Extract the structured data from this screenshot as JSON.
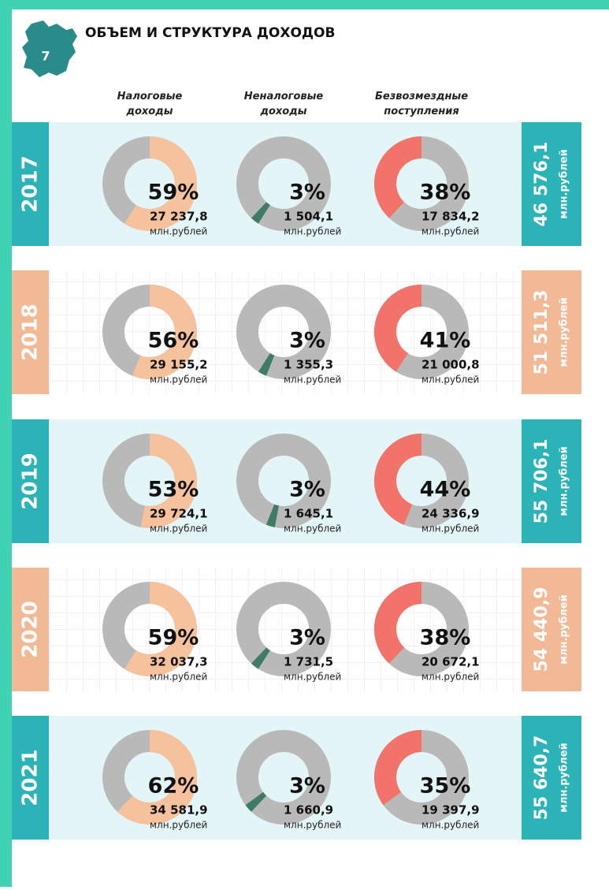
{
  "title": "ОБЪЕМ И СТРУКТУРА ДОХОДОВ",
  "page_number": "7",
  "columns": [
    "Налоговые доходы",
    "Неналоговые доходы",
    "Безвозмездные поступления"
  ],
  "rows": [
    {
      "year": "2017",
      "total": "46 576,1",
      "total_unit": "млн.рублей",
      "items": [
        {
          "percent": 59,
          "percent_label": "59%",
          "amount": "27 237,8",
          "unit": "млн.рублей"
        },
        {
          "percent": 3,
          "percent_label": "3%",
          "amount": "1 504,1",
          "unit": "млн.рублей"
        },
        {
          "percent": 38,
          "percent_label": "38%",
          "amount": "17 834,2",
          "unit": "млн.рублей"
        }
      ]
    },
    {
      "year": "2018",
      "total": "51 511,3",
      "total_unit": "млн.рублей",
      "items": [
        {
          "percent": 56,
          "percent_label": "56%",
          "amount": "29 155,2",
          "unit": "млн.рублей"
        },
        {
          "percent": 3,
          "percent_label": "3%",
          "amount": "1 355,3",
          "unit": "млн.рублей"
        },
        {
          "percent": 41,
          "percent_label": "41%",
          "amount": "21 000,8",
          "unit": "млн.рублей"
        }
      ]
    },
    {
      "year": "2019",
      "total": "55 706,1",
      "total_unit": "млн.рублей",
      "items": [
        {
          "percent": 53,
          "percent_label": "53%",
          "amount": "29 724,1",
          "unit": "млн.рублей"
        },
        {
          "percent": 3,
          "percent_label": "3%",
          "amount": "1 645,1",
          "unit": "млн.рублей"
        },
        {
          "percent": 44,
          "percent_label": "44%",
          "amount": "24 336,9",
          "unit": "млн.рублей"
        }
      ]
    },
    {
      "year": "2020",
      "total": "54 440,9",
      "total_unit": "млн.рублей",
      "items": [
        {
          "percent": 59,
          "percent_label": "59%",
          "amount": "32 037,3",
          "unit": "млн.рублей"
        },
        {
          "percent": 3,
          "percent_label": "3%",
          "amount": "1 731,5",
          "unit": "млн.рублей"
        },
        {
          "percent": 38,
          "percent_label": "38%",
          "amount": "20 672,1",
          "unit": "млн.рублей"
        }
      ]
    },
    {
      "year": "2021",
      "total": "55 640,7",
      "total_unit": "млн.рублей",
      "items": [
        {
          "percent": 62,
          "percent_label": "62%",
          "amount": "34 581,9",
          "unit": "млн.рублей"
        },
        {
          "percent": 3,
          "percent_label": "3%",
          "amount": "1 660,9",
          "unit": "млн.рублей"
        },
        {
          "percent": 35,
          "percent_label": "35%",
          "amount": "19 397,9",
          "unit": "млн.рублей"
        }
      ]
    }
  ],
  "colors": [
    "#f6c29e",
    "#3f7c66",
    "#f2736a"
  ]
}
